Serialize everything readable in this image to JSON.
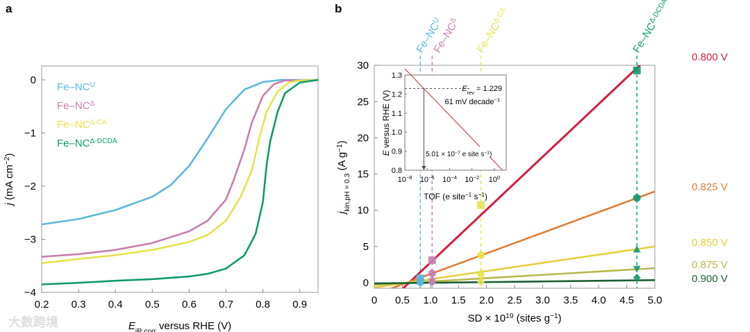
{
  "chart_data": [
    {
      "panel": "a",
      "type": "line",
      "xlabel": {
        "main": "E",
        "sub": "iR corr",
        "rest": " versus RHE (V)"
      },
      "ylabel": {
        "main": "j",
        "rest": " (mA cm",
        "sup": "−2",
        "end": ")"
      },
      "xlim": [
        0.2,
        0.95
      ],
      "ylim": [
        -4,
        0.25
      ],
      "xticks": [
        "0.2",
        "0.3",
        "0.4",
        "0.5",
        "0.6",
        "0.7",
        "0.8",
        "0.9"
      ],
      "yticks": [
        "0",
        "−1",
        "−2",
        "−3",
        "−4"
      ],
      "legend_position": "top-left",
      "series": [
        {
          "name": "Fe–NC",
          "sup": "U",
          "color": "#5ab7dc",
          "x": [
            0.2,
            0.3,
            0.4,
            0.5,
            0.55,
            0.6,
            0.65,
            0.7,
            0.75,
            0.8,
            0.85,
            0.95
          ],
          "y": [
            -2.72,
            -2.62,
            -2.45,
            -2.2,
            -1.98,
            -1.62,
            -1.1,
            -0.55,
            -0.18,
            -0.04,
            0,
            0
          ]
        },
        {
          "name": "Fe–NC",
          "sup": "Δ",
          "color": "#c57fae",
          "x": [
            0.2,
            0.3,
            0.4,
            0.5,
            0.6,
            0.65,
            0.7,
            0.72,
            0.75,
            0.77,
            0.8,
            0.83,
            0.86,
            0.95
          ],
          "y": [
            -3.33,
            -3.28,
            -3.2,
            -3.07,
            -2.85,
            -2.65,
            -2.25,
            -1.9,
            -1.3,
            -0.8,
            -0.3,
            -0.08,
            -0.01,
            0
          ]
        },
        {
          "name": "Fe–NC",
          "sup": "Δ-CA",
          "color": "#e6e24e",
          "x": [
            0.2,
            0.3,
            0.4,
            0.5,
            0.6,
            0.65,
            0.7,
            0.74,
            0.77,
            0.79,
            0.81,
            0.84,
            0.87,
            0.9,
            0.95
          ],
          "y": [
            -3.45,
            -3.37,
            -3.3,
            -3.2,
            -3.05,
            -2.92,
            -2.65,
            -2.2,
            -1.7,
            -1.1,
            -0.6,
            -0.22,
            -0.05,
            -0.01,
            0
          ]
        },
        {
          "name": "Fe–NC",
          "sup": "Δ-DCDA",
          "color": "#0f9a6e",
          "x": [
            0.2,
            0.3,
            0.4,
            0.5,
            0.6,
            0.65,
            0.7,
            0.75,
            0.78,
            0.8,
            0.81,
            0.82,
            0.84,
            0.86,
            0.9,
            0.95
          ],
          "y": [
            -3.85,
            -3.82,
            -3.78,
            -3.75,
            -3.7,
            -3.65,
            -3.55,
            -3.3,
            -2.9,
            -2.3,
            -1.6,
            -1.15,
            -0.6,
            -0.25,
            -0.05,
            0
          ]
        }
      ]
    },
    {
      "panel": "b",
      "type": "scatter",
      "xlabel": {
        "main": "SD × 10",
        "sup": "19",
        "rest": " (sites g",
        "sup2": "−1",
        "end": ")"
      },
      "ylabel": {
        "main": "j",
        "sub": "kin,pH = 0.3",
        "rest": " (A g",
        "sup": "−1",
        "end": ")"
      },
      "xlim": [
        0,
        5
      ],
      "ylim": [
        -0.8,
        30
      ],
      "xticks": [
        "0",
        "0.5",
        "1.0",
        "1.5",
        "2.0",
        "2.5",
        "3.0",
        "3.5",
        "4.0",
        "4.5",
        "5.0"
      ],
      "yticks": [
        "0",
        "5",
        "10",
        "15",
        "20",
        "25",
        "30"
      ],
      "catalysts": [
        {
          "name": "Fe–NC",
          "sup": "U",
          "sd": 0.82,
          "color": "#5ab7dc"
        },
        {
          "name": "Fe–NC",
          "sup": "Δ",
          "sd": 1.03,
          "color": "#c57fae"
        },
        {
          "name": "Fe–NC",
          "sup": "Δ-CA",
          "sd": 1.9,
          "color": "#e6e24e"
        },
        {
          "name": "Fe–NC",
          "sup": "Δ-DCDA",
          "sd": 4.68,
          "color": "#0f9a6e"
        }
      ],
      "series": [
        {
          "label": "0.800 V",
          "color": "#d31c3f",
          "marker": "square",
          "slope": 7.3,
          "x_intercept": 0.62,
          "points": [
            0.6,
            3.1,
            10.7,
            29.3
          ]
        },
        {
          "label": "0.825 V",
          "color": "#e07b38",
          "marker": "circle",
          "slope": 2.85,
          "x_intercept": 0.58,
          "points": [
            0.3,
            1.3,
            3.8,
            11.7
          ]
        },
        {
          "label": "0.850 V",
          "color": "#e5cf3c",
          "marker": "triangle-up",
          "slope": 1.13,
          "x_intercept": 0.58,
          "points": [
            0.1,
            0.5,
            1.5,
            4.6
          ]
        },
        {
          "label": "0.875 V",
          "color": "#b9b84c",
          "marker": "triangle-down",
          "slope": 0.46,
          "x_intercept": 0.65,
          "points": [
            0.0,
            0.2,
            0.7,
            1.9
          ]
        },
        {
          "label": "0.900 V",
          "color": "#1c5e33",
          "marker": "diamond",
          "slope": 0.09,
          "x_intercept": 1.1,
          "points": [
            -0.1,
            0.0,
            0.1,
            0.7
          ]
        }
      ],
      "inset": {
        "type": "line",
        "xlabel": {
          "main": "TOF (e site",
          "sup": "−1",
          "mid": " s",
          "sup2": "−1",
          "end": ")"
        },
        "ylabel": {
          "main": "E",
          "rest": " versus RHE (V)"
        },
        "xlim_log10": [
          -8,
          0.75
        ],
        "ylim": [
          0.8,
          1.3
        ],
        "xticks": [
          {
            "base": "10",
            "exp": "−8"
          },
          {
            "base": "10",
            "exp": "−6"
          },
          {
            "base": "10",
            "exp": "−4"
          },
          {
            "base": "10",
            "exp": "−2"
          },
          {
            "base": "10",
            "exp": "0"
          }
        ],
        "yticks": [
          "0.8",
          "0.9",
          "1.0",
          "1.1",
          "1.2",
          "1.3"
        ],
        "erev": 1.229,
        "tof_log10_at_erev": -6.3,
        "slope_mV_per_decade": 61,
        "erev_label": {
          "main": "E",
          "sub": "rev",
          "rest": " = 1.229"
        },
        "slope_label": {
          "main": "61 mV decade",
          "sup": "−1"
        },
        "tof_label": {
          "main": "5.01 × 10",
          "sup": "−7",
          "rest": " e site s",
          "sup2": "−1",
          "end": ")"
        },
        "line_color": "#c0504d"
      }
    }
  ],
  "panel_labels": [
    "a",
    "b"
  ],
  "watermark": "大数跨境"
}
